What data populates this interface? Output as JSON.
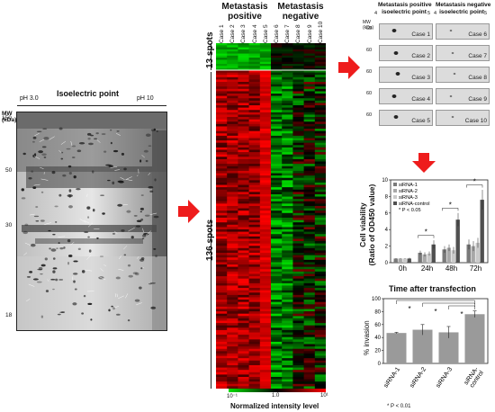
{
  "gel": {
    "mw_axis_label": "MW\n(kDa)",
    "ph_low": "pH 3.0",
    "ph_high": "pH 10",
    "isoelectric_label": "Isoelectric point",
    "mw_ticks": [
      "150",
      "50",
      "30",
      "18"
    ]
  },
  "heatmap": {
    "group_positive": "Metastasis\npositive",
    "group_negative": "Metastasis\nnegative",
    "cases": [
      "Case 1",
      "Case 2",
      "Case 3",
      "Case 4",
      "Case 5",
      "Case 6",
      "Case 7",
      "Case 8",
      "Case 9",
      "Case 10"
    ],
    "block_top_label": "13 spots",
    "block_bottom_label": "136 spots",
    "scale_min": "10⁻¹",
    "scale_mid": "1.0",
    "scale_max": "10¹",
    "scale_label": "Normalized intensity level",
    "colors": {
      "low": "#00e000",
      "mid": "#000000",
      "high": "#ff0000"
    }
  },
  "spot_panels": {
    "pos_title": "Metastasis positive\nisoelectric point",
    "neg_title": "Metastasis negative\nisoelectric point",
    "ph_a": "4",
    "ph_b": "5",
    "ph_c": "4",
    "ph_d": "5",
    "mw_label": "MW\n(kDa)",
    "mw_value": "60",
    "pos_cases": [
      "Case 1",
      "Case 2",
      "Case 3",
      "Case 4",
      "Case 5"
    ],
    "neg_cases": [
      "Case 6",
      "Case 7",
      "Case 8",
      "Case 9",
      "Case 10"
    ]
  },
  "viability_chart": {
    "ylabel": "Cell viability\n(Ratio of OD450 value)",
    "xlabel": "Time after transfection",
    "legend": [
      "siRNA-1",
      "siRNA-2",
      "siRNA-3",
      "siRNA-control",
      "* P < 0.05"
    ],
    "categories": [
      "0h",
      "24h",
      "48h",
      "72h"
    ],
    "yticks": [
      "0",
      "2",
      "4",
      "6",
      "8",
      "10"
    ],
    "star": "*"
  },
  "invasion_chart": {
    "ylabel": "% invasion",
    "yticks": [
      "0",
      "20",
      "40",
      "60",
      "80",
      "100"
    ],
    "categories": [
      "siRNA-1",
      "siRNA-2",
      "siRNA-3",
      "siRNA-\ncontrol"
    ],
    "footnote": "* P < 0.01",
    "star": "*"
  },
  "chart_data": [
    {
      "type": "bar",
      "title": "",
      "xlabel": "Time after transfection",
      "ylabel": "Cell viability (Ratio of OD450 value)",
      "ylim": [
        0,
        10
      ],
      "categories": [
        "0h",
        "24h",
        "48h",
        "72h"
      ],
      "series": [
        {
          "name": "siRNA-1",
          "values": [
            0.5,
            1.2,
            1.6,
            2.2
          ]
        },
        {
          "name": "siRNA-2",
          "values": [
            0.5,
            1.0,
            1.8,
            2.0
          ]
        },
        {
          "name": "siRNA-3",
          "values": [
            0.5,
            1.1,
            1.5,
            2.4
          ]
        },
        {
          "name": "siRNA-control",
          "values": [
            0.5,
            2.2,
            5.2,
            7.6
          ]
        }
      ],
      "errors": [
        0.1,
        0.5,
        0.8,
        1.2
      ],
      "legend_position": "top-left",
      "colors": [
        "#7a7a7a",
        "#a8a8a8",
        "#c9c9c9",
        "#505050"
      ]
    },
    {
      "type": "bar",
      "title": "",
      "xlabel": "",
      "ylabel": "% invasion",
      "ylim": [
        0,
        100
      ],
      "categories": [
        "siRNA-1",
        "siRNA-2",
        "siRNA-3",
        "siRNA-control"
      ],
      "values": [
        47,
        52,
        48,
        76
      ],
      "errors": [
        1,
        8,
        9,
        5
      ],
      "colors": [
        "#9a9a9a"
      ]
    }
  ]
}
